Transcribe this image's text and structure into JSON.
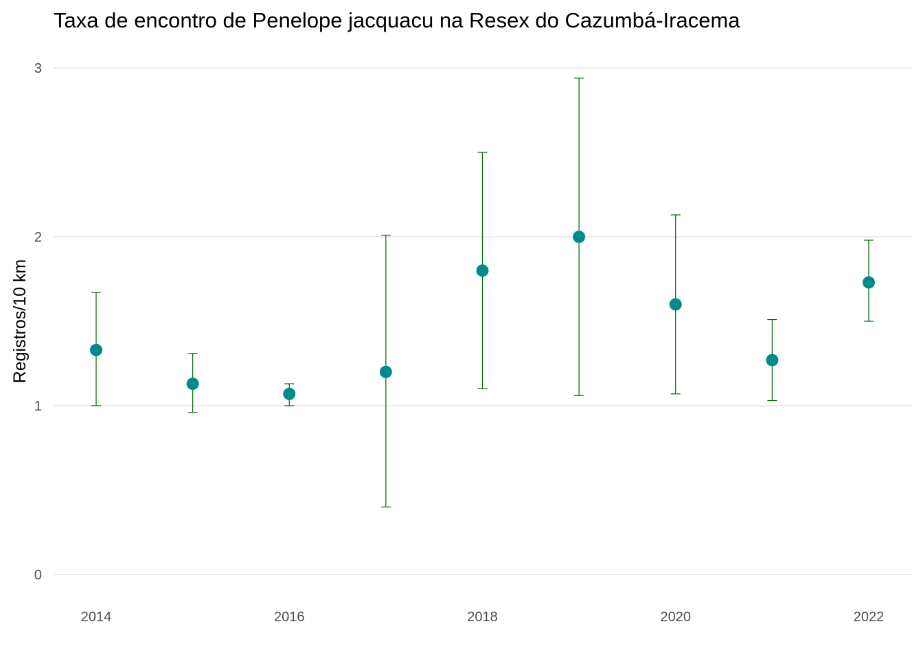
{
  "chart_data": {
    "type": "scatter",
    "title": "Taxa de encontro de Penelope jacquacu na Resex do Cazumbá-Iracema",
    "xlabel": "",
    "ylabel": "Registros/10 km",
    "x": [
      2014,
      2015,
      2016,
      2017,
      2018,
      2019,
      2020,
      2021,
      2022
    ],
    "series": [
      {
        "values": [
          1.33,
          1.13,
          1.07,
          1.2,
          1.8,
          2.0,
          1.6,
          1.27,
          1.73
        ],
        "lower": [
          1.0,
          0.96,
          1.0,
          0.4,
          1.1,
          1.06,
          1.07,
          1.03,
          1.5
        ],
        "upper": [
          1.67,
          1.31,
          1.13,
          2.01,
          2.5,
          2.94,
          2.13,
          1.51,
          1.98
        ]
      }
    ],
    "xticks": [
      "2014",
      "2016",
      "2018",
      "2020",
      "2022"
    ],
    "yticks": [
      "0",
      "1",
      "2",
      "3"
    ],
    "xlim": [
      2013.75,
      2022.25
    ],
    "ylim": [
      0,
      3
    ],
    "grid": true,
    "colors": {
      "point": "#008b8b",
      "errorbar": "#006400",
      "grid": "#e5e5e5"
    }
  }
}
